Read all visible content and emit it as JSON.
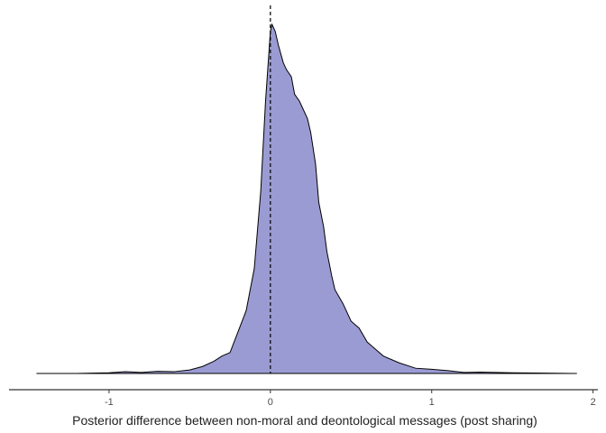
{
  "chart_data": {
    "type": "area",
    "title": "",
    "xlabel": "Posterior difference between non-moral and deontological messages (post sharing)",
    "ylabel": "",
    "xlim": [
      -1.62,
      2.03
    ],
    "ylim": [
      0,
      1.0
    ],
    "x_ticks": [
      "-1",
      "0",
      "1",
      "2"
    ],
    "reference_line": {
      "x": 0,
      "style": "dashed"
    },
    "series": [
      {
        "fill": "#9b9bd3",
        "stroke": "#000000",
        "x": [
          -1.45,
          -1.2,
          -1.0,
          -0.9,
          -0.8,
          -0.7,
          -0.6,
          -0.5,
          -0.42,
          -0.35,
          -0.3,
          -0.25,
          -0.2,
          -0.15,
          -0.1,
          -0.06,
          -0.03,
          0.0,
          0.01,
          0.02,
          0.03,
          0.05,
          0.08,
          0.1,
          0.13,
          0.15,
          0.18,
          0.2,
          0.23,
          0.25,
          0.28,
          0.3,
          0.33,
          0.35,
          0.38,
          0.4,
          0.45,
          0.5,
          0.55,
          0.6,
          0.65,
          0.7,
          0.8,
          0.9,
          1.0,
          1.1,
          1.2,
          1.3,
          1.5,
          1.7,
          1.9
        ],
        "y": [
          0.0,
          0.0,
          0.002,
          0.005,
          0.003,
          0.006,
          0.005,
          0.01,
          0.02,
          0.035,
          0.05,
          0.06,
          0.12,
          0.18,
          0.3,
          0.52,
          0.78,
          0.98,
          1.0,
          0.99,
          0.98,
          0.94,
          0.89,
          0.87,
          0.85,
          0.8,
          0.78,
          0.76,
          0.73,
          0.69,
          0.6,
          0.49,
          0.42,
          0.35,
          0.28,
          0.24,
          0.2,
          0.15,
          0.13,
          0.09,
          0.07,
          0.05,
          0.03,
          0.015,
          0.012,
          0.008,
          0.003,
          0.004,
          0.002,
          0.001,
          0.0
        ]
      }
    ],
    "grid": false
  }
}
